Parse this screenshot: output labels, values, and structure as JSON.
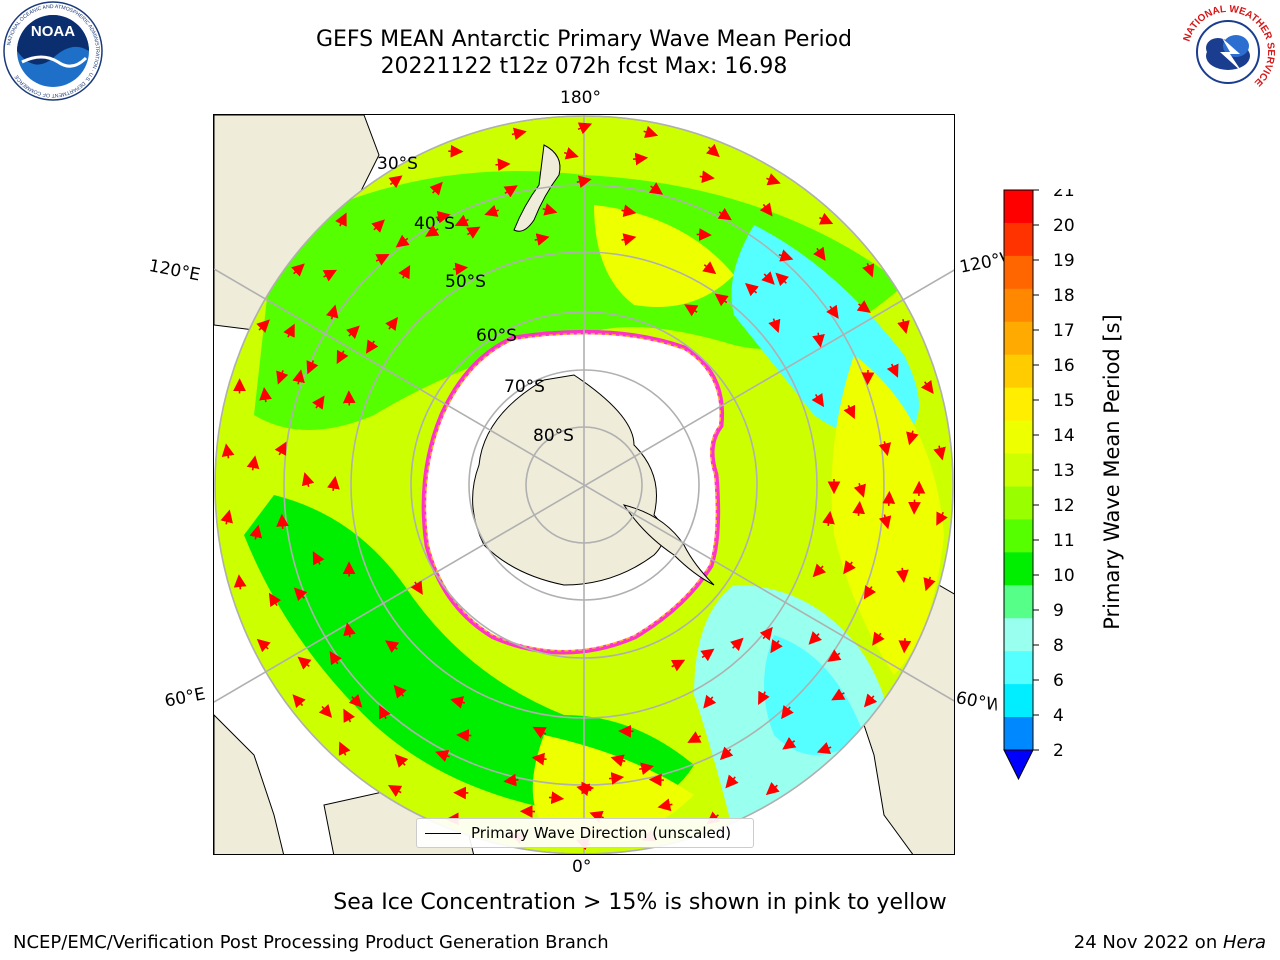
{
  "header": {
    "title_line1": "GEFS MEAN Antarctic Primary Wave Mean Period",
    "title_line2": "20221122 t12z 072h fcst   Max: 16.98"
  },
  "logos": {
    "left": "NOAA",
    "left_ring_text": "NATIONAL OCEANIC AND ATMOSPHERIC ADMINISTRATION · U.S. DEPARTMENT OF COMMERCE",
    "right_ring_text": "NATIONAL WEATHER SERVICE"
  },
  "map": {
    "longitude_labels": {
      "top": "180°",
      "bottom": "0°",
      "upper_left": "120°E",
      "upper_right": "120°W",
      "lower_left": "60°E",
      "lower_right": "60°W"
    },
    "latitude_labels": [
      "30°S",
      "40°S",
      "50°S",
      "60°S",
      "70°S",
      "80°S"
    ],
    "legend_label": "Primary Wave Direction (unscaled)"
  },
  "colorbar": {
    "label": "Primary Wave Mean Period [s]",
    "ticks": [
      "21",
      "20",
      "19",
      "18",
      "17",
      "16",
      "15",
      "14",
      "13",
      "12",
      "11",
      "10",
      "9",
      "8",
      "6",
      "4",
      "2"
    ],
    "colors_top_to_bottom": [
      "#ff0000",
      "#ff3300",
      "#ff6600",
      "#ff8800",
      "#ffaa00",
      "#ffcc00",
      "#ffee00",
      "#eeff00",
      "#ccff00",
      "#99ff00",
      "#55ff00",
      "#00ee00",
      "#55ff88",
      "#99ffee",
      "#55ffff",
      "#00eeff",
      "#0088ff"
    ],
    "extend_color": "#0000ff"
  },
  "caption": "Sea Ice Concentration > 15% is shown in pink to yellow",
  "footer": {
    "left": "NCEP/EMC/Verification Post Processing Product Generation Branch",
    "right_date": "24 Nov 2022 on ",
    "right_host": "Hera"
  }
}
